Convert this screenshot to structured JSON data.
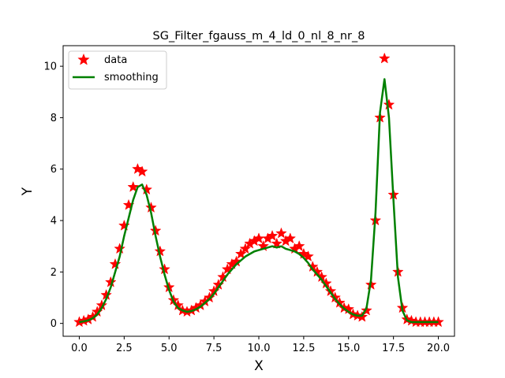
{
  "chart_data": {
    "type": "line",
    "title": "SG_Filter_fgauss_m_4_ld_0_nl_8_nr_8",
    "xlabel": "X",
    "ylabel": "Y",
    "xlim": [
      -0.9,
      20.9
    ],
    "ylim": [
      -0.5,
      10.8
    ],
    "xticks": [
      0.0,
      2.5,
      5.0,
      7.5,
      10.0,
      12.5,
      15.0,
      17.5,
      20.0
    ],
    "xtick_labels": [
      "0.0",
      "2.5",
      "5.0",
      "7.5",
      "10.0",
      "12.5",
      "15.0",
      "17.5",
      "20.0"
    ],
    "yticks": [
      0,
      2,
      4,
      6,
      8,
      10
    ],
    "ytick_labels": [
      "0",
      "2",
      "4",
      "6",
      "8",
      "10"
    ],
    "grid": false,
    "legend_position": "top-left",
    "series": [
      {
        "name": "data",
        "style": "star-markers",
        "color": "#ff0000",
        "x": [
          0.0,
          0.25,
          0.5,
          0.75,
          1.0,
          1.25,
          1.5,
          1.75,
          2.0,
          2.25,
          2.5,
          2.75,
          3.0,
          3.25,
          3.5,
          3.75,
          4.0,
          4.25,
          4.5,
          4.75,
          5.0,
          5.25,
          5.5,
          5.75,
          6.0,
          6.25,
          6.5,
          6.75,
          7.0,
          7.25,
          7.5,
          7.75,
          8.0,
          8.25,
          8.5,
          8.75,
          9.0,
          9.25,
          9.5,
          9.75,
          10.0,
          10.25,
          10.5,
          10.75,
          11.0,
          11.25,
          11.5,
          11.75,
          12.0,
          12.25,
          12.5,
          12.75,
          13.0,
          13.25,
          13.5,
          13.75,
          14.0,
          14.25,
          14.5,
          14.75,
          15.0,
          15.25,
          15.5,
          15.75,
          16.0,
          16.25,
          16.5,
          16.75,
          17.0,
          17.25,
          17.5,
          17.75,
          18.0,
          18.25,
          18.5,
          18.75,
          19.0,
          19.25,
          19.5,
          19.75,
          20.0
        ],
        "values": [
          0.05,
          0.1,
          0.15,
          0.25,
          0.45,
          0.7,
          1.1,
          1.6,
          2.3,
          2.9,
          3.8,
          4.6,
          5.3,
          6.0,
          5.9,
          5.2,
          4.5,
          3.6,
          2.8,
          2.1,
          1.4,
          0.9,
          0.7,
          0.5,
          0.45,
          0.5,
          0.6,
          0.7,
          0.85,
          1.0,
          1.25,
          1.5,
          1.8,
          2.1,
          2.3,
          2.4,
          2.7,
          2.9,
          3.1,
          3.2,
          3.3,
          3.0,
          3.3,
          3.4,
          3.1,
          3.5,
          3.2,
          3.3,
          2.9,
          3.0,
          2.7,
          2.6,
          2.2,
          2.0,
          1.8,
          1.55,
          1.25,
          1.0,
          0.8,
          0.6,
          0.55,
          0.35,
          0.3,
          0.25,
          0.5,
          1.5,
          4.0,
          8.0,
          10.3,
          8.5,
          5.0,
          2.0,
          0.6,
          0.15,
          0.1,
          0.05,
          0.05,
          0.05,
          0.05,
          0.05,
          0.05
        ]
      },
      {
        "name": "smoothing",
        "style": "line",
        "color": "#008000",
        "x": [
          0.0,
          0.25,
          0.5,
          0.75,
          1.0,
          1.25,
          1.5,
          1.75,
          2.0,
          2.25,
          2.5,
          2.75,
          3.0,
          3.25,
          3.5,
          3.75,
          4.0,
          4.25,
          4.5,
          4.75,
          5.0,
          5.25,
          5.5,
          5.75,
          6.0,
          6.25,
          6.5,
          6.75,
          7.0,
          7.25,
          7.5,
          7.75,
          8.0,
          8.25,
          8.5,
          8.75,
          9.0,
          9.25,
          9.5,
          9.75,
          10.0,
          10.25,
          10.5,
          10.75,
          11.0,
          11.25,
          11.5,
          11.75,
          12.0,
          12.25,
          12.5,
          12.75,
          13.0,
          13.25,
          13.5,
          13.75,
          14.0,
          14.25,
          14.5,
          14.75,
          15.0,
          15.25,
          15.5,
          15.75,
          16.0,
          16.25,
          16.5,
          16.75,
          17.0,
          17.25,
          17.5,
          17.75,
          18.0,
          18.25,
          18.5,
          18.75,
          19.0,
          19.25,
          19.5,
          19.75,
          20.0
        ],
        "values": [
          0.05,
          0.08,
          0.12,
          0.2,
          0.35,
          0.6,
          0.95,
          1.4,
          2.0,
          2.6,
          3.4,
          4.1,
          4.8,
          5.3,
          5.4,
          5.0,
          4.3,
          3.4,
          2.6,
          1.9,
          1.3,
          0.85,
          0.6,
          0.5,
          0.45,
          0.48,
          0.55,
          0.65,
          0.8,
          0.95,
          1.15,
          1.4,
          1.65,
          1.9,
          2.1,
          2.3,
          2.45,
          2.6,
          2.7,
          2.8,
          2.85,
          2.9,
          2.95,
          3.0,
          2.95,
          3.0,
          2.9,
          2.85,
          2.8,
          2.7,
          2.55,
          2.35,
          2.1,
          1.9,
          1.7,
          1.45,
          1.2,
          0.95,
          0.75,
          0.58,
          0.45,
          0.35,
          0.3,
          0.3,
          0.6,
          1.7,
          4.3,
          8.2,
          9.5,
          8.0,
          4.8,
          1.8,
          0.5,
          0.12,
          0.05,
          0.05,
          0.05,
          0.05,
          0.05,
          0.05,
          0.05
        ]
      }
    ]
  }
}
